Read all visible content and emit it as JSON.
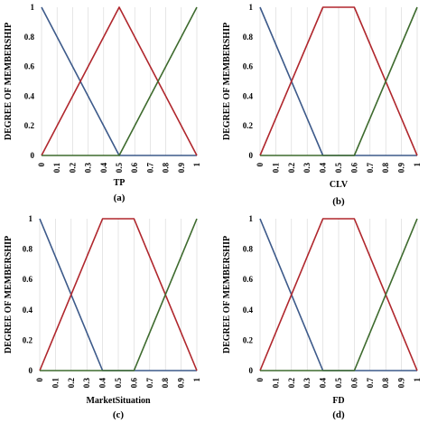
{
  "chart_data": [
    {
      "type": "line",
      "panel_letter": "(a)",
      "xlabel": "TP",
      "ylabel": "DEGREE OF MEMBERSHIP",
      "xticks": [
        "0",
        "0.1",
        "0.2",
        "0.3",
        "0.4",
        "0.5",
        "0.6",
        "0.7",
        "0.8",
        "0.9",
        "1"
      ],
      "yticks": [
        "0",
        "0.2",
        "0.4",
        "0.6",
        "0.8",
        "1"
      ],
      "xlim": [
        0,
        1
      ],
      "ylim": [
        0,
        1
      ],
      "grid": "vertical",
      "series": [
        {
          "color": "#3d5a8a",
          "x": [
            0,
            0.5,
            1
          ],
          "y": [
            1,
            0,
            0
          ]
        },
        {
          "color": "#b0272d",
          "x": [
            0,
            0.5,
            1
          ],
          "y": [
            0,
            1,
            0
          ]
        },
        {
          "color": "#3e6b2e",
          "x": [
            0,
            0.5,
            1
          ],
          "y": [
            0,
            0,
            1
          ]
        }
      ]
    },
    {
      "type": "line",
      "panel_letter": "(b)",
      "xlabel": "CLV",
      "ylabel": "DEGREE OF MEMBERSHIP",
      "xticks": [
        "0",
        "0.1",
        "0.2",
        "0.3",
        "0.4",
        "0.5",
        "0.6",
        "0.7",
        "0.8",
        "0.9",
        "1"
      ],
      "yticks": [
        "0",
        "0.2",
        "0.4",
        "0.6",
        "0.8",
        "1"
      ],
      "xlim": [
        0,
        1
      ],
      "ylim": [
        0,
        1
      ],
      "grid": "vertical",
      "series": [
        {
          "color": "#3d5a8a",
          "x": [
            0,
            0.4,
            1
          ],
          "y": [
            1,
            0,
            0
          ]
        },
        {
          "color": "#b0272d",
          "x": [
            0,
            0.4,
            0.6,
            1
          ],
          "y": [
            0,
            1,
            1,
            0
          ]
        },
        {
          "color": "#3e6b2e",
          "x": [
            0,
            0.6,
            1
          ],
          "y": [
            0,
            0,
            1
          ]
        }
      ]
    },
    {
      "type": "line",
      "panel_letter": "(c)",
      "xlabel": "MarketSituation",
      "ylabel": "DEGREE OF MEMBERSHIP",
      "xticks": [
        "0",
        "0.1",
        "0.2",
        "0.3",
        "0.4",
        "0.5",
        "0.6",
        "0.7",
        "0.8",
        "0.9",
        "1"
      ],
      "yticks": [
        "0",
        "0.2",
        "0.4",
        "0.6",
        "0.8",
        "1"
      ],
      "xlim": [
        0,
        1
      ],
      "ylim": [
        0,
        1
      ],
      "grid": "vertical",
      "series": [
        {
          "color": "#3d5a8a",
          "x": [
            0,
            0.4,
            1
          ],
          "y": [
            1,
            0,
            0
          ]
        },
        {
          "color": "#b0272d",
          "x": [
            0,
            0.4,
            0.6,
            1
          ],
          "y": [
            0,
            1,
            1,
            0
          ]
        },
        {
          "color": "#3e6b2e",
          "x": [
            0,
            0.6,
            1
          ],
          "y": [
            0,
            0,
            1
          ]
        }
      ]
    },
    {
      "type": "line",
      "panel_letter": "(d)",
      "xlabel": "FD",
      "ylabel": "DEGREE OF MEMBERSHIP",
      "xticks": [
        "0",
        "0.1",
        "0.2",
        "0.3",
        "0.4",
        "0.5",
        "0.6",
        "0.7",
        "0.8",
        "0.9",
        "1"
      ],
      "yticks": [
        "0",
        "0.2",
        "0.4",
        "0.6",
        "0.8",
        "1"
      ],
      "xlim": [
        0,
        1
      ],
      "ylim": [
        0,
        1
      ],
      "grid": "vertical",
      "series": [
        {
          "color": "#3d5a8a",
          "x": [
            0,
            0.4,
            1
          ],
          "y": [
            1,
            0,
            0
          ]
        },
        {
          "color": "#b0272d",
          "x": [
            0,
            0.4,
            0.6,
            1
          ],
          "y": [
            0,
            1,
            1,
            0
          ]
        },
        {
          "color": "#3e6b2e",
          "x": [
            0,
            0.6,
            1
          ],
          "y": [
            0,
            0,
            1
          ]
        }
      ]
    }
  ]
}
